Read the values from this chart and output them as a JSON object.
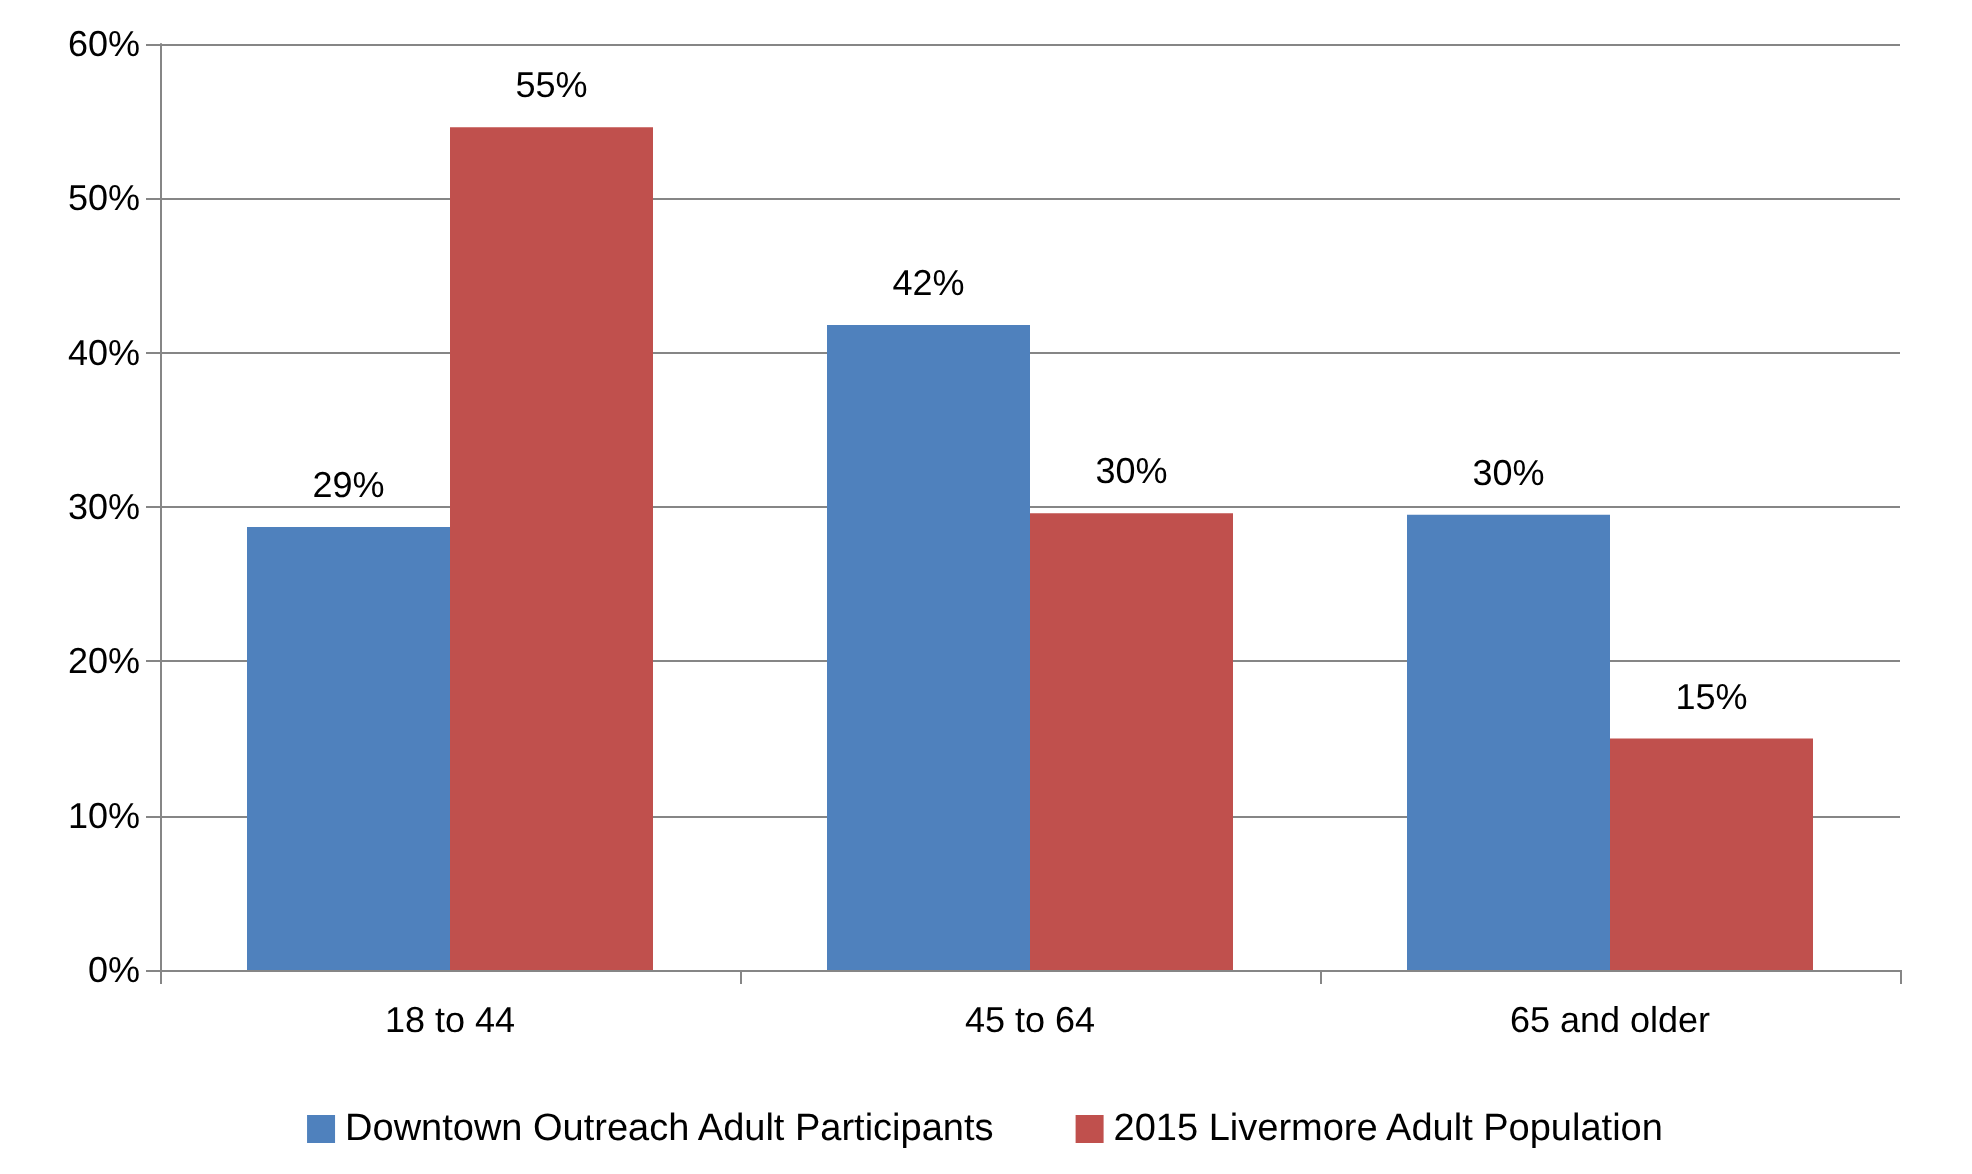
{
  "chart_data": {
    "type": "bar",
    "categories": [
      "18 to 44",
      "45 to 64",
      "65 and older"
    ],
    "series": [
      {
        "name": "Downtown Outreach Adult Participants",
        "color": "#4f81bd",
        "values": [
          28.7,
          41.8,
          29.5
        ],
        "value_labels": [
          "29%",
          "42%",
          "30%"
        ]
      },
      {
        "name": "2015 Livermore Adult Population",
        "color": "#c0504d",
        "values": [
          54.6,
          29.6,
          15.0
        ],
        "value_labels": [
          "55%",
          "30%",
          "15%"
        ]
      }
    ],
    "ylim": [
      0,
      60
    ],
    "yticks": [
      {
        "value": 0,
        "label": "0%"
      },
      {
        "value": 10,
        "label": "10%"
      },
      {
        "value": 20,
        "label": "20%"
      },
      {
        "value": 30,
        "label": "30%"
      },
      {
        "value": 40,
        "label": "40%"
      },
      {
        "value": 50,
        "label": "50%"
      },
      {
        "value": 60,
        "label": "60%"
      }
    ],
    "grid": "y",
    "legend": "bottom"
  }
}
